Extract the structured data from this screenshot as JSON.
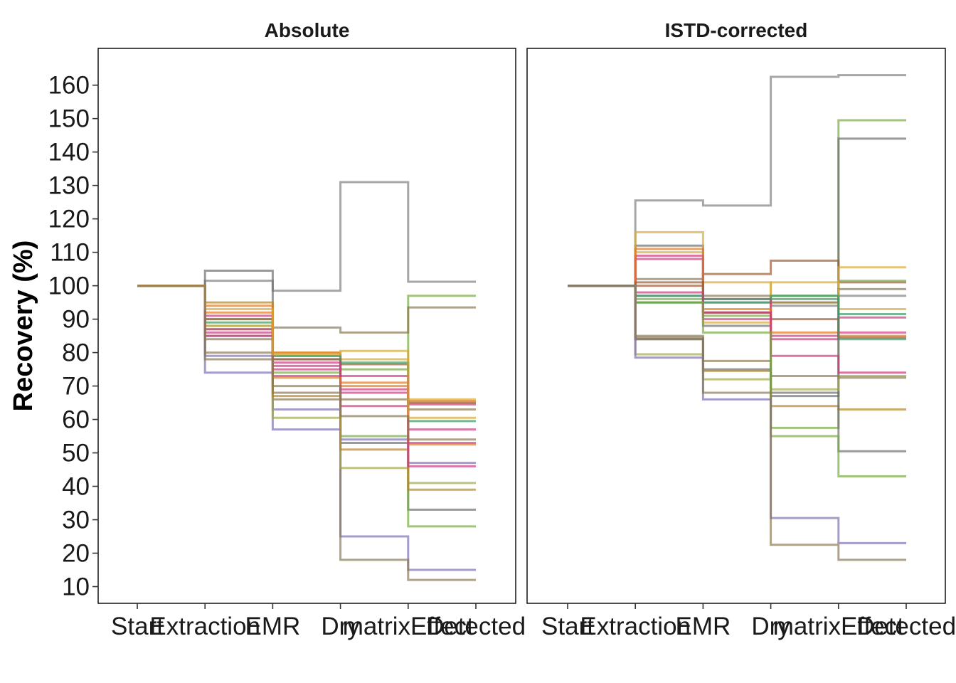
{
  "chart_data": {
    "type": "line",
    "step": true,
    "ylabel": "Recovery (%)",
    "ylim": [
      5,
      171
    ],
    "yticks": [
      10,
      20,
      30,
      40,
      50,
      60,
      70,
      80,
      90,
      100,
      110,
      120,
      130,
      140,
      150,
      160
    ],
    "categories": [
      "Start",
      "Extraction",
      "EMR",
      "Dry",
      "matrixEffect",
      "Detected"
    ],
    "grid": false,
    "legend": "none",
    "palette": [
      "#808080",
      "#77ab43",
      "#8b7a55",
      "#8070b8",
      "#d7a93a",
      "#cc3c82",
      "#e07b20",
      "#3a9a66",
      "#9a5d34",
      "#a4a84a",
      "#6f6f6f",
      "#b7862f"
    ],
    "panels": [
      {
        "title": "Absolute",
        "series": [
          {
            "values": [
              100,
              101.5,
              98.5,
              131,
              101.2,
              101.2
            ],
            "color": "#808080"
          },
          {
            "values": [
              100,
              88,
              79,
              75,
              97,
              97
            ],
            "color": "#77ab43"
          },
          {
            "values": [
              100,
              85,
              87.5,
              86,
              93.5,
              93.5
            ],
            "color": "#8b7a55"
          },
          {
            "values": [
              100,
              104.5,
              78,
              53,
              33,
              33
            ],
            "color": "#6f6f6f"
          },
          {
            "values": [
              100,
              87,
              74,
              55,
              28,
              28
            ],
            "color": "#77ab43"
          },
          {
            "values": [
              100,
              79,
              63,
              25,
              15,
              15
            ],
            "color": "#8070b8"
          },
          {
            "values": [
              100,
              80,
              66,
              18,
              12,
              12
            ],
            "color": "#8b7a55"
          },
          {
            "values": [
              100,
              74,
              57,
              54,
              47,
              47
            ],
            "color": "#8070b8"
          },
          {
            "values": [
              100,
              90,
              60.5,
              45.5,
              41,
              41
            ],
            "color": "#a4a84a"
          },
          {
            "values": [
              100,
              95,
              67,
              51,
              39,
              39
            ],
            "color": "#b7862f"
          },
          {
            "values": [
              100,
              88,
              80,
              78,
              66,
              66
            ],
            "color": "#d7a93a"
          },
          {
            "values": [
              100,
              94,
              80,
              71,
              65.5,
              65.5
            ],
            "color": "#e07b20"
          },
          {
            "values": [
              100,
              90,
              78,
              76.5,
              65,
              65
            ],
            "color": "#9a5d34"
          },
          {
            "values": [
              100,
              87,
              76,
              69,
              64.5,
              64.5
            ],
            "color": "#cc3c82"
          },
          {
            "values": [
              100,
              89,
              79,
              77,
              59.5,
              59.5
            ],
            "color": "#3a9a66"
          },
          {
            "values": [
              100,
              86,
              77,
              68,
              57,
              57
            ],
            "color": "#cc3c82"
          },
          {
            "values": [
              100,
              91,
              73,
              64,
              53,
              53
            ],
            "color": "#cc3c82"
          },
          {
            "values": [
              100,
              92,
              72.5,
              70,
              52.5,
              52.5
            ],
            "color": "#e07b20"
          },
          {
            "values": [
              100,
              85,
              75,
              73,
              46,
              46
            ],
            "color": "#cc3c82"
          },
          {
            "values": [
              100,
              84,
              70,
              66,
              63,
              63
            ],
            "color": "#8b7a55"
          },
          {
            "values": [
              100,
              93,
              79.5,
              80.5,
              60.5,
              60.5
            ],
            "color": "#d7a93a"
          },
          {
            "values": [
              100,
              78,
              68,
              61,
              54,
              54
            ],
            "color": "#8b7a55"
          }
        ]
      },
      {
        "title": "ISTD-corrected",
        "series": [
          {
            "values": [
              100,
              125.5,
              124,
              162.5,
              163,
              163
            ],
            "color": "#808080"
          },
          {
            "values": [
              100,
              96,
              91,
              57.5,
              149.5,
              149.5
            ],
            "color": "#77ab43"
          },
          {
            "values": [
              100,
              112,
              88,
              67,
              144,
              144
            ],
            "color": "#6f6f6f"
          },
          {
            "values": [
              100,
              100,
              103.5,
              107.5,
              101,
              101
            ],
            "color": "#9a5d34"
          },
          {
            "values": [
              100,
              95,
              92,
              97,
              101.5,
              101.5
            ],
            "color": "#77ab43"
          },
          {
            "values": [
              100,
              116,
              101,
              95,
              105.5,
              105.5
            ],
            "color": "#d7a93a"
          },
          {
            "values": [
              100,
              102,
              97,
              95,
              99,
              99
            ],
            "color": "#8b7a55"
          },
          {
            "values": [
              100,
              97,
              95,
              94,
              97,
              97
            ],
            "color": "#808080"
          },
          {
            "values": [
              100,
              110,
              89,
              101,
              93,
              93
            ],
            "color": "#d7a93a"
          },
          {
            "values": [
              100,
              95,
              95,
              97,
              91.5,
              91.5
            ],
            "color": "#3a9a66"
          },
          {
            "values": [
              100,
              108,
              90,
              85,
              90.5,
              90.5
            ],
            "color": "#cc3c82"
          },
          {
            "values": [
              100,
              109,
              96,
              84,
              86,
              86
            ],
            "color": "#cc3c82"
          },
          {
            "values": [
              100,
              111,
              93,
              86,
              85,
              85
            ],
            "color": "#e07b20"
          },
          {
            "values": [
              100,
              101,
              92,
              90,
              84.5,
              84.5
            ],
            "color": "#9a5d34"
          },
          {
            "values": [
              100,
              97,
              96,
              96,
              84,
              84
            ],
            "color": "#3a9a66"
          },
          {
            "values": [
              100,
              98,
              92,
              79,
              74,
              74
            ],
            "color": "#cc3c82"
          },
          {
            "values": [
              100,
              79.5,
              72,
              69,
              73,
              73
            ],
            "color": "#a4a84a"
          },
          {
            "values": [
              100,
              84,
              74.5,
              64,
              63,
              63
            ],
            "color": "#b7862f"
          },
          {
            "values": [
              100,
              85,
              77.5,
              73,
              72.5,
              72.5
            ],
            "color": "#8b7a55"
          },
          {
            "values": [
              100,
              84,
              75,
              68,
              50.5,
              50.5
            ],
            "color": "#6f6f6f"
          },
          {
            "values": [
              100,
              95,
              86,
              55,
              43,
              43
            ],
            "color": "#77ab43"
          },
          {
            "values": [
              100,
              78.5,
              66,
              30.5,
              23,
              23
            ],
            "color": "#8070b8"
          },
          {
            "values": [
              100,
              84.5,
              68,
              22.5,
              18,
              18
            ],
            "color": "#8b7a55"
          }
        ]
      }
    ]
  }
}
